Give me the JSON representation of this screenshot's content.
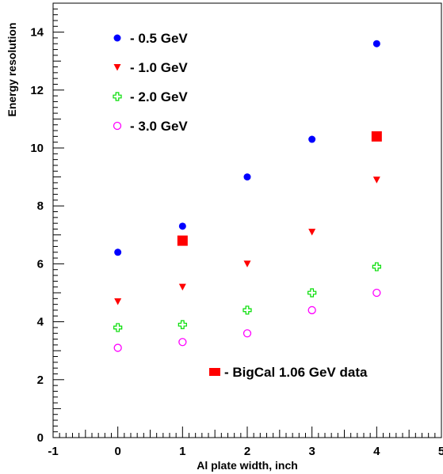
{
  "chart_data": {
    "type": "scatter",
    "title": "",
    "xlabel": "Al plate width, inch",
    "ylabel": "Energy resolution",
    "xlim": [
      -1,
      5
    ],
    "ylim": [
      0,
      15
    ],
    "x_ticks": [
      -1,
      0,
      1,
      2,
      3,
      4,
      5
    ],
    "y_ticks": [
      0,
      2,
      4,
      6,
      8,
      10,
      12,
      14
    ],
    "x_tick_labels": [
      "-1",
      "0",
      "1",
      "2",
      "3",
      "4",
      "5"
    ],
    "y_tick_labels": [
      "0",
      "2",
      "4",
      "6",
      "8",
      "10",
      "12",
      "14"
    ],
    "grid": false,
    "legend_placement": "top-left",
    "series": [
      {
        "name": "-  0.5 GeV",
        "marker": "filled-circle",
        "color": "#0000ff",
        "x": [
          0,
          1,
          2,
          3,
          4
        ],
        "y": [
          6.4,
          7.3,
          9.0,
          10.3,
          13.6
        ]
      },
      {
        "name": "-  1.0 GeV",
        "marker": "filled-triangle-down",
        "color": "#ff0000",
        "x": [
          0,
          1,
          2,
          3,
          4
        ],
        "y": [
          4.7,
          5.2,
          6.0,
          7.1,
          8.9
        ]
      },
      {
        "name": "-  2.0 GeV",
        "marker": "open-cross",
        "color": "#00dd00",
        "x": [
          0,
          1,
          2,
          3,
          4
        ],
        "y": [
          3.8,
          3.9,
          4.4,
          5.0,
          5.9
        ]
      },
      {
        "name": "-  3.0 GeV",
        "marker": "open-circle",
        "color": "#ff00ff",
        "x": [
          0,
          1,
          2,
          3,
          4
        ],
        "y": [
          3.1,
          3.3,
          3.6,
          4.4,
          5.0
        ]
      },
      {
        "name": "-  BigCal 1.06 GeV data",
        "marker": "filled-square",
        "color": "#ff0000",
        "x": [
          1,
          4
        ],
        "y": [
          6.8,
          10.4
        ]
      }
    ]
  }
}
